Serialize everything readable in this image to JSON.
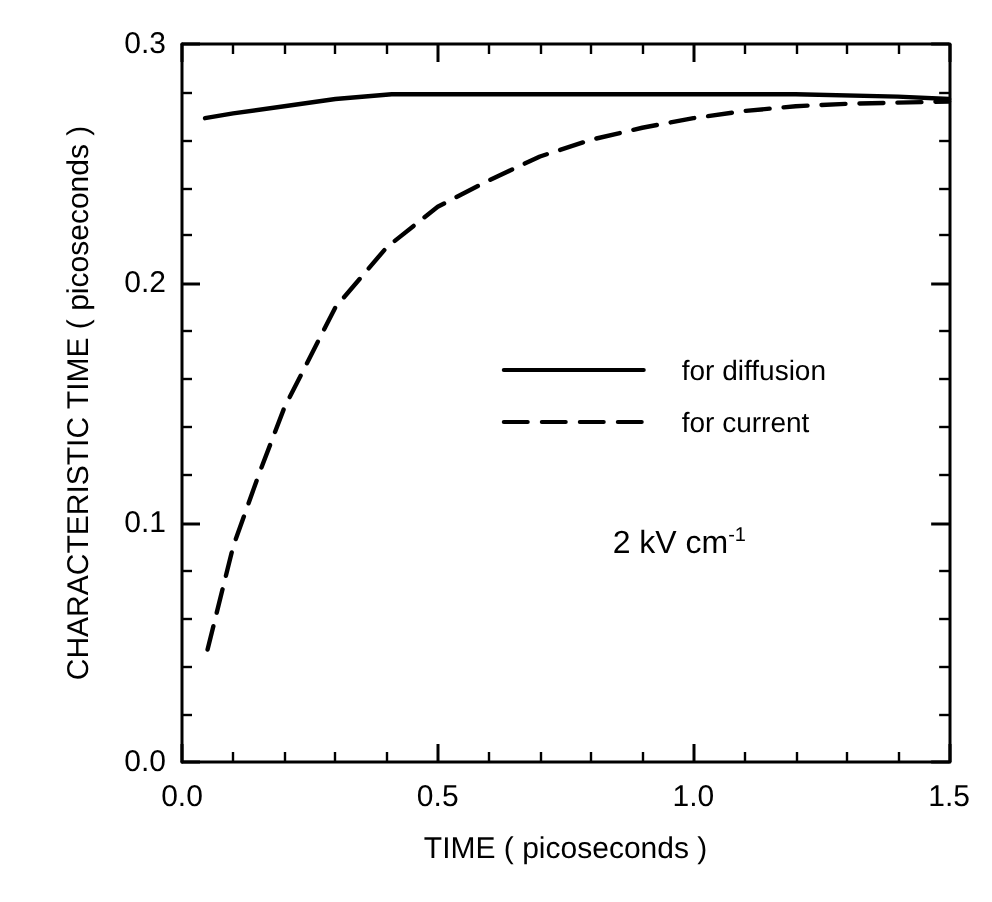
{
  "chart_data": {
    "type": "line",
    "xlabel": "TIME ( picoseconds )",
    "ylabel": "CHARACTERISTIC TIME ( picoseconds )",
    "xlim": [
      0,
      1.5
    ],
    "ylim": [
      0,
      0.3
    ],
    "xticks": [
      {
        "value": 0,
        "label": "0.0"
      },
      {
        "value": 0.5,
        "label": "0.5"
      },
      {
        "value": 1,
        "label": "1.0"
      },
      {
        "value": 1.5,
        "label": "1.5"
      }
    ],
    "yticks": [
      {
        "value": 0,
        "label": "0.0"
      },
      {
        "value": 0.1,
        "label": "0.1"
      },
      {
        "value": 0.2,
        "label": "0.2"
      },
      {
        "value": 0.3,
        "label": "0.3"
      }
    ],
    "grid": false,
    "legend": "right",
    "marker": "none",
    "annotations": [
      "2 kV cm$^{-1}$"
    ],
    "series": [
      {
        "name": "for diffusion",
        "color": "#000000",
        "line_style": "solid",
        "x": [
          0.045,
          0.1,
          0.2,
          0.3,
          0.41,
          0.6,
          0.8,
          1.0,
          1.2,
          1.4,
          1.5
        ],
        "values": [
          0.269,
          0.271,
          0.274,
          0.277,
          0.279,
          0.279,
          0.279,
          0.279,
          0.279,
          0.278,
          0.277
        ]
      },
      {
        "name": "for current",
        "color": "#000000",
        "line_style": "dashed",
        "x": [
          0.05,
          0.1,
          0.15,
          0.2,
          0.3,
          0.4,
          0.5,
          0.6,
          0.7,
          0.8,
          0.9,
          1.0,
          1.1,
          1.2,
          1.3,
          1.5
        ],
        "values": [
          0.047,
          0.09,
          0.12,
          0.148,
          0.19,
          0.215,
          0.232,
          0.243,
          0.253,
          0.26,
          0.265,
          0.269,
          0.272,
          0.274,
          0.275,
          0.276
        ]
      }
    ]
  }
}
